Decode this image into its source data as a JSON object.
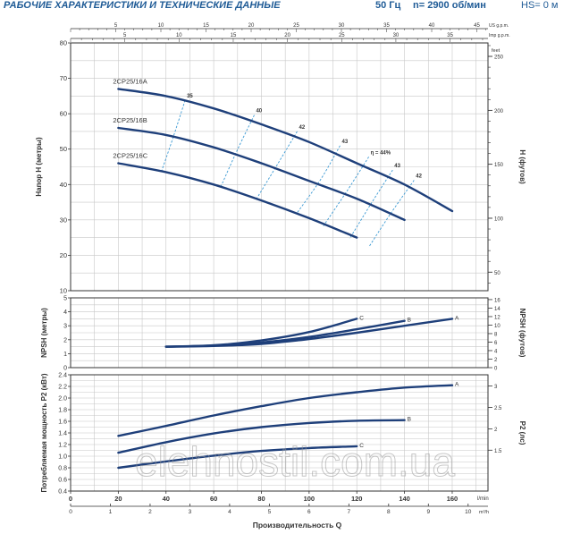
{
  "header": {
    "title": "РАБОЧИЕ ХАРАКТЕРИСТИКИ И ТЕХНИЧЕСКИЕ ДАННЫЕ",
    "frequency": "50 Гц",
    "speed": "n= 2900 об/мин",
    "hs": "HS= 0 м"
  },
  "watermark": "elehnostil.com.ua",
  "chart_data": [
    {
      "type": "line",
      "name": "head",
      "ylabel": "Напор H (метры)",
      "ylabel_right": "H (футов)",
      "xlim": [
        0,
        175
      ],
      "ylim": [
        10,
        80
      ],
      "yticks": [
        10,
        20,
        30,
        40,
        50,
        60,
        70,
        80
      ],
      "right_ticks": [
        "50",
        "100",
        "150",
        "200",
        "250"
      ],
      "right_unit": "feet",
      "top_axis_1_unit": "US g.p.m.",
      "top_axis_1_ticks": [
        "5",
        "10",
        "15",
        "20",
        "25",
        "30",
        "35",
        "40",
        "45"
      ],
      "top_axis_2_unit": "Imp g.p.m.",
      "top_axis_2_ticks": [
        "5",
        "10",
        "15",
        "20",
        "25",
        "30",
        "35"
      ],
      "grid": true,
      "series": [
        {
          "name": "2CP25/16A",
          "x": [
            20,
            40,
            60,
            80,
            100,
            120,
            140,
            160
          ],
          "y": [
            67,
            65,
            61.5,
            57,
            52,
            46,
            40,
            32.5
          ]
        },
        {
          "name": "2CP25/16B",
          "x": [
            20,
            40,
            60,
            80,
            100,
            120,
            140
          ],
          "y": [
            56,
            54,
            50.5,
            46,
            41,
            36,
            30
          ]
        },
        {
          "name": "2CP25/16C",
          "x": [
            20,
            40,
            60,
            80,
            100,
            120
          ],
          "y": [
            46,
            43.5,
            40,
            35.5,
            30.5,
            25
          ]
        }
      ],
      "efficiency_lines": [
        {
          "label": "35",
          "x": [
            48,
            43,
            38
          ],
          "y": [
            63.8,
            53.3,
            43.5
          ]
        },
        {
          "label": "40",
          "x": [
            77,
            70,
            63
          ],
          "y": [
            59.6,
            49.9,
            39.4
          ]
        },
        {
          "label": "42",
          "x": [
            95,
            87,
            78
          ],
          "y": [
            55,
            46,
            36
          ]
        },
        {
          "label": "43",
          "x": [
            113,
            105,
            95
          ],
          "y": [
            51,
            41.6,
            32
          ]
        },
        {
          "label": "η = 44%",
          "x": [
            125,
            116,
            106
          ],
          "y": [
            47.8,
            38.3,
            28.3
          ]
        },
        {
          "label": "43",
          "x": [
            135,
            126,
            117
          ],
          "y": [
            44.1,
            34.6,
            24.7
          ]
        },
        {
          "label": "42",
          "x": [
            144,
            134,
            125
          ],
          "y": [
            41.2,
            31.6,
            22.3
          ]
        }
      ]
    },
    {
      "type": "line",
      "name": "npsh",
      "ylabel": "NPSH (метры)",
      "ylabel_right": "NPSH (футов)",
      "xlim": [
        0,
        175
      ],
      "ylim": [
        0,
        5
      ],
      "yticks": [
        0,
        1,
        2,
        3,
        4,
        5
      ],
      "right_ticks": [
        "0",
        "2",
        "4",
        "6",
        "8",
        "10",
        "12",
        "14",
        "16"
      ],
      "grid": true,
      "series": [
        {
          "name": "A",
          "x": [
            40,
            60,
            80,
            100,
            120,
            140,
            160
          ],
          "y": [
            1.5,
            1.55,
            1.7,
            2.05,
            2.5,
            3.0,
            3.5
          ]
        },
        {
          "name": "B",
          "x": [
            40,
            60,
            80,
            100,
            120,
            140
          ],
          "y": [
            1.5,
            1.58,
            1.8,
            2.2,
            2.75,
            3.35
          ]
        },
        {
          "name": "C",
          "x": [
            40,
            60,
            80,
            100,
            120
          ],
          "y": [
            1.5,
            1.6,
            1.95,
            2.55,
            3.5
          ]
        }
      ]
    },
    {
      "type": "line",
      "name": "power",
      "ylabel": "Потребляемая мощность P2 (кВт)",
      "ylabel_right": "P2 (лс)",
      "xlabel": "Производительность  Q",
      "x_unit": "l/min",
      "x_unit_2": "m³/h",
      "xlim": [
        0,
        175
      ],
      "ylim": [
        0.4,
        2.4
      ],
      "yticks": [
        0.4,
        0.6,
        0.8,
        1.0,
        1.2,
        1.4,
        1.6,
        1.8,
        2.0,
        2.2,
        2.4
      ],
      "right_ticks": [
        "1.5",
        "2",
        "2.5",
        "3"
      ],
      "xticks": [
        0,
        20,
        40,
        60,
        80,
        100,
        120,
        140,
        160
      ],
      "xticks_2": [
        "0",
        "1",
        "2",
        "3",
        "4",
        "5",
        "6",
        "7",
        "8",
        "9",
        "10"
      ],
      "grid": true,
      "series": [
        {
          "name": "A",
          "x": [
            20,
            40,
            60,
            80,
            100,
            120,
            140,
            160
          ],
          "y": [
            1.35,
            1.52,
            1.7,
            1.86,
            2.0,
            2.1,
            2.18,
            2.22
          ]
        },
        {
          "name": "B",
          "x": [
            20,
            40,
            60,
            80,
            100,
            120,
            140
          ],
          "y": [
            1.06,
            1.24,
            1.39,
            1.5,
            1.57,
            1.61,
            1.62
          ]
        },
        {
          "name": "C",
          "x": [
            20,
            40,
            60,
            80,
            100,
            120
          ],
          "y": [
            0.8,
            0.91,
            1.01,
            1.09,
            1.14,
            1.17
          ]
        }
      ]
    }
  ],
  "colors": {
    "curve": "#1e3f7a",
    "efficiency": "#3c9ad4",
    "axis": "#333333",
    "grid": "#c8c8c8",
    "header": "#1f5b96",
    "watermark": "#9a9a9a"
  }
}
